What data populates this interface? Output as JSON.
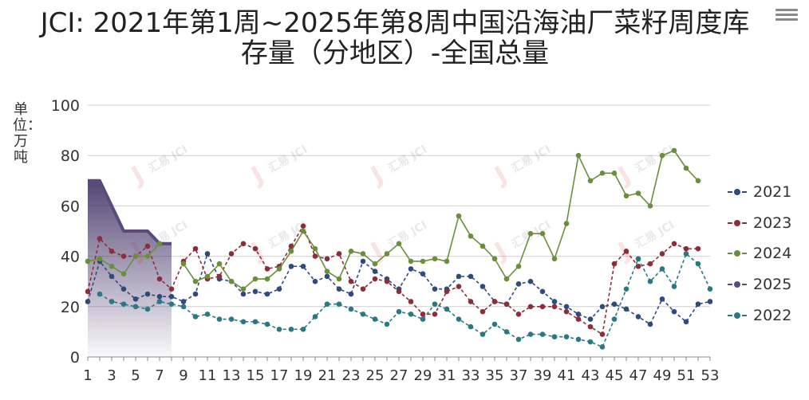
{
  "title": "JCI: 2021年第1周~2025年第8周中国沿海油厂菜籽周度库存量（分地区）-全国总量",
  "watermark": "汇易 JCI",
  "chart_data": {
    "type": "line",
    "title": "JCI: 2021年第1周~2025年第8周中国沿海油厂菜籽周度库存量（分地区）-全国总量",
    "ylabel": "单位：万吨",
    "xlabel": "",
    "ylim": [
      0,
      100
    ],
    "yticks": [
      0,
      20,
      40,
      60,
      80,
      100
    ],
    "x": [
      1,
      2,
      3,
      4,
      5,
      6,
      7,
      8,
      9,
      10,
      11,
      12,
      13,
      14,
      15,
      16,
      17,
      18,
      19,
      20,
      21,
      22,
      23,
      24,
      25,
      26,
      27,
      28,
      29,
      30,
      31,
      32,
      33,
      34,
      35,
      36,
      37,
      38,
      39,
      40,
      41,
      42,
      43,
      44,
      45,
      46,
      47,
      48,
      49,
      50,
      51,
      52,
      53
    ],
    "xtick_labels": [
      "1",
      "3",
      "5",
      "7",
      "9",
      "11",
      "13",
      "15",
      "17",
      "19",
      "21",
      "23",
      "25",
      "27",
      "29",
      "31",
      "33",
      "35",
      "37",
      "39",
      "41",
      "43",
      "45",
      "47",
      "49",
      "51",
      "53"
    ],
    "grid": true,
    "legend_position": "right",
    "series": [
      {
        "name": "2021",
        "color": "#2f4b7c",
        "style": "dashed",
        "values": [
          22,
          38,
          32,
          27,
          23,
          25,
          24,
          24,
          22,
          25,
          41,
          31,
          30,
          25,
          26,
          25,
          27,
          36,
          36,
          30,
          32,
          27,
          25,
          38,
          34,
          31,
          27,
          35,
          33,
          27,
          27,
          32,
          32,
          28,
          22,
          21,
          29,
          30,
          26,
          22,
          20,
          17,
          15,
          20,
          21,
          19,
          16,
          13,
          23,
          18,
          14,
          21,
          22
        ]
      },
      {
        "name": "2023",
        "color": "#8c2d3a",
        "style": "dashed",
        "values": [
          26,
          47,
          42,
          40,
          40,
          44,
          31,
          27,
          38,
          43,
          31,
          32,
          41,
          45,
          43,
          35,
          36,
          44,
          52,
          40,
          39,
          41,
          30,
          27,
          31,
          30,
          26,
          22,
          17,
          17,
          26,
          28,
          22,
          18,
          22,
          21,
          17,
          20,
          20,
          20,
          18,
          15,
          12,
          9,
          37,
          42,
          36,
          37,
          41,
          45,
          43,
          43,
          null
        ]
      },
      {
        "name": "2024",
        "color": "#6b8e3d",
        "style": "solid",
        "values": [
          38,
          39,
          36,
          33,
          40,
          40,
          45,
          null,
          37,
          30,
          32,
          37,
          30,
          27,
          31,
          31,
          35,
          42,
          50,
          43,
          34,
          31,
          42,
          41,
          37,
          41,
          45,
          38,
          38,
          39,
          38,
          56,
          48,
          44,
          39,
          31,
          36,
          49,
          49,
          39,
          53,
          80,
          70,
          73,
          73,
          64,
          65,
          60,
          80,
          82,
          75,
          70,
          null
        ]
      },
      {
        "name": "2025",
        "color": "#5b4a7a",
        "style": "solid-area",
        "values": [
          70,
          70,
          60,
          50,
          50,
          50,
          45,
          45,
          null,
          null,
          null,
          null,
          null,
          null,
          null,
          null,
          null,
          null,
          null,
          null,
          null,
          null,
          null,
          null,
          null,
          null,
          null,
          null,
          null,
          null,
          null,
          null,
          null,
          null,
          null,
          null,
          null,
          null,
          null,
          null,
          null,
          null,
          null,
          null,
          null,
          null,
          null,
          null,
          null,
          null,
          null,
          null,
          null
        ]
      },
      {
        "name": "2022",
        "color": "#2c7783",
        "style": "dashed",
        "values": [
          null,
          25,
          22,
          21,
          20,
          19,
          22,
          21,
          20,
          16,
          17,
          15,
          15,
          14,
          14,
          13,
          11,
          11,
          11,
          16,
          21,
          21,
          19,
          17,
          15,
          13,
          18,
          17,
          15,
          21,
          19,
          15,
          12,
          9,
          13,
          10,
          7,
          9,
          9,
          8,
          8,
          7,
          6,
          4,
          15,
          27,
          39,
          30,
          35,
          28,
          41,
          37,
          27
        ]
      }
    ]
  },
  "legend": {
    "items": [
      {
        "label": "2021",
        "color": "#2f4b7c"
      },
      {
        "label": "2023",
        "color": "#8c2d3a"
      },
      {
        "label": "2024",
        "color": "#6b8e3d"
      },
      {
        "label": "2025",
        "color": "#5b4a7a"
      },
      {
        "label": "2022",
        "color": "#2c7783"
      }
    ]
  },
  "menu_icon": "hamburger-menu-icon"
}
